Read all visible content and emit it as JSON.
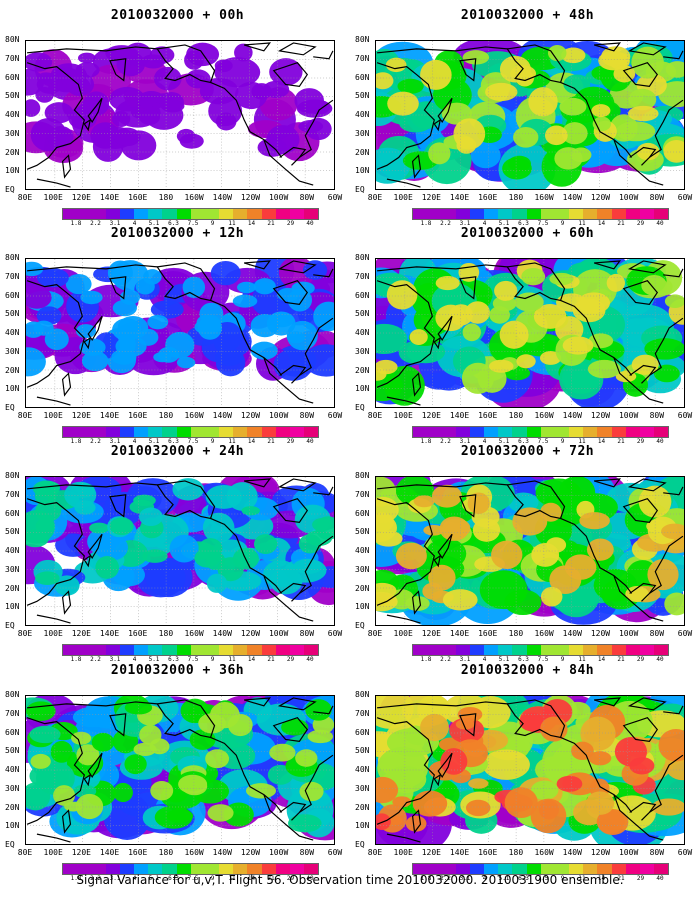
{
  "panels": [
    {
      "title": "2010032000 + 00h",
      "intensity": 0.15
    },
    {
      "title": "2010032000 + 48h",
      "intensity": 0.75
    },
    {
      "title": "2010032000 + 12h",
      "intensity": 0.35
    },
    {
      "title": "2010032000 + 60h",
      "intensity": 0.8
    },
    {
      "title": "2010032000 + 24h",
      "intensity": 0.5
    },
    {
      "title": "2010032000 + 72h",
      "intensity": 0.9
    },
    {
      "title": "2010032000 + 36h",
      "intensity": 0.65
    },
    {
      "title": "2010032000 + 84h",
      "intensity": 1.0
    }
  ],
  "lat_labels": [
    "80N",
    "70N",
    "60N",
    "50N",
    "40N",
    "30N",
    "20N",
    "10N",
    "EQ"
  ],
  "lon_labels": [
    "80E",
    "100E",
    "120E",
    "140E",
    "160E",
    "180",
    "160W",
    "140W",
    "120W",
    "100W",
    "80W",
    "60W"
  ],
  "colorbar": {
    "labels": [
      "1.8",
      "2.2",
      "3.1",
      "4",
      "5.1",
      "6.3",
      "7.5",
      "9",
      "11",
      "14",
      "21",
      "29",
      "40"
    ],
    "colors": [
      "#a000c8",
      "#8200dc",
      "#1e3cff",
      "#00a0ff",
      "#00c8c8",
      "#00d28c",
      "#00dc00",
      "#a0e632",
      "#e6dc32",
      "#e6af2d",
      "#f08228",
      "#fa3c3c",
      "#f00082"
    ]
  },
  "caption": "Signal Variance for u,v,T. Flight 56. Observation time 2010032000. 2010031900 ensemble."
}
